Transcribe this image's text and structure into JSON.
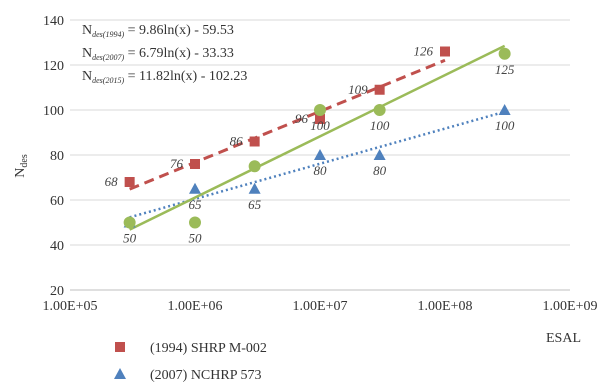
{
  "chart_data": {
    "type": "scatter",
    "x_scale": "log",
    "xlim": [
      100000,
      1000000000
    ],
    "ylim": [
      20,
      140
    ],
    "y_ticks": [
      20,
      40,
      60,
      80,
      100,
      120,
      140
    ],
    "x_ticks": [
      100000,
      1000000,
      10000000,
      100000000,
      1000000000
    ],
    "x_tick_labels": [
      "1.00E+05",
      "1.00E+06",
      "1.00E+07",
      "1.00E+08",
      "1.00E+09"
    ],
    "xlabel": "ESAL",
    "ylabel_main": "N",
    "ylabel_sub": "des",
    "grid": "horizontal",
    "legend_position": "bottom-left",
    "series": [
      {
        "name": "(1994) SHRP M-002",
        "marker": "square",
        "color": "#c0504d",
        "x": [
          300000,
          1000000,
          3000000,
          10000000,
          30000000,
          100000000
        ],
        "y": [
          68,
          76,
          86,
          96,
          109,
          126
        ],
        "labels": [
          "68",
          "76",
          "86",
          "96",
          "109",
          "126"
        ],
        "label_pos": [
          "left",
          "left",
          "left",
          "left",
          "left",
          "left"
        ],
        "trend": {
          "a": 9.86,
          "b": -59.53,
          "style": "dashed"
        }
      },
      {
        "name": "(2007) NCHRP 573",
        "marker": "triangle",
        "color": "#4f81bd",
        "x": [
          300000,
          1000000,
          3000000,
          10000000,
          30000000,
          300000000
        ],
        "y": [
          50,
          65,
          65,
          80,
          80,
          100
        ],
        "labels": [
          "",
          "65",
          "65",
          "80",
          "80",
          "100"
        ],
        "label_pos": [
          "below",
          "below",
          "below",
          "below",
          "below",
          "below"
        ],
        "trend": {
          "a": 6.79,
          "b": -33.33,
          "style": "dotted"
        }
      },
      {
        "name": "(2015)",
        "marker": "circle",
        "color": "#9bbb59",
        "x": [
          300000,
          1000000,
          3000000,
          10000000,
          30000000,
          300000000
        ],
        "y": [
          50,
          50,
          75,
          100,
          100,
          125
        ],
        "labels": [
          "50",
          "50",
          "",
          "100",
          "100",
          "125"
        ],
        "label_pos": [
          "below",
          "below",
          "below",
          "below",
          "below",
          "below"
        ],
        "trend": {
          "a": 11.82,
          "b": -102.23,
          "style": "solid"
        }
      }
    ],
    "equations": [
      {
        "main": "N",
        "sub": "des(1994)",
        "rest": " = 9.86ln(x) - 59.53"
      },
      {
        "main": "N",
        "sub": "des(2007)",
        "rest": " = 6.79ln(x) - 33.33"
      },
      {
        "main": "N",
        "sub": "des(2015)",
        "rest": " = 11.82ln(x) - 102.23"
      }
    ],
    "legend_entries_visible": [
      "(1994) SHRP M-002",
      "(2007) NCHRP 573"
    ]
  }
}
